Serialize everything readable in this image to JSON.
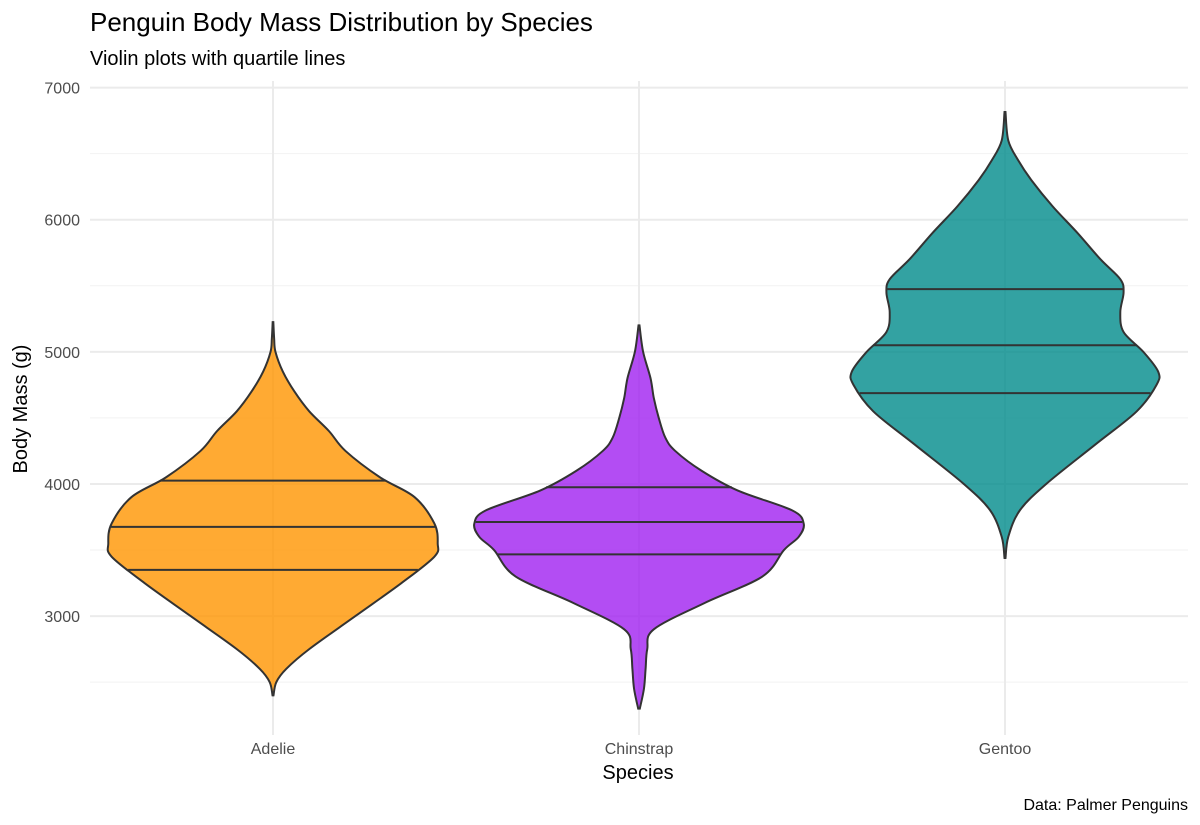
{
  "chart_data": {
    "type": "violin",
    "title": "Penguin Body Mass Distribution by Species",
    "subtitle": "Violin plots with quartile lines",
    "xlabel": "Species",
    "ylabel": "Body Mass (g)",
    "caption": "Data: Palmer Penguins",
    "ylim": [
      2100,
      7050
    ],
    "yticks": [
      3000,
      4000,
      5000,
      6000,
      7000
    ],
    "yticks_minor": [
      2500,
      3500,
      4500,
      5500,
      6500
    ],
    "categories": [
      "Adelie",
      "Chinstrap",
      "Gentoo"
    ],
    "series": [
      {
        "name": "Adelie",
        "color": "#FF9500",
        "quartiles": [
          3350,
          3675,
          4025
        ],
        "density": [
          [
            2400,
            0.003
          ],
          [
            2500,
            0.02
          ],
          [
            2600,
            0.08
          ],
          [
            2750,
            0.22
          ],
          [
            3000,
            0.5
          ],
          [
            3250,
            0.78
          ],
          [
            3450,
            0.98
          ],
          [
            3550,
            1.0
          ],
          [
            3700,
            0.98
          ],
          [
            3900,
            0.86
          ],
          [
            4050,
            0.65
          ],
          [
            4250,
            0.44
          ],
          [
            4400,
            0.34
          ],
          [
            4550,
            0.22
          ],
          [
            4700,
            0.13
          ],
          [
            4850,
            0.06
          ],
          [
            5000,
            0.015
          ],
          [
            5100,
            0.007
          ],
          [
            5225,
            0.002
          ]
        ]
      },
      {
        "name": "Chinstrap",
        "color": "#A020F0",
        "quartiles": [
          3467,
          3712,
          3975
        ],
        "density": [
          [
            2300,
            0.005
          ],
          [
            2450,
            0.03
          ],
          [
            2600,
            0.04
          ],
          [
            2750,
            0.05
          ],
          [
            2900,
            0.09
          ],
          [
            3100,
            0.4
          ],
          [
            3300,
            0.75
          ],
          [
            3500,
            0.88
          ],
          [
            3600,
            0.97
          ],
          [
            3700,
            1.0
          ],
          [
            3800,
            0.93
          ],
          [
            3950,
            0.6
          ],
          [
            4100,
            0.38
          ],
          [
            4250,
            0.22
          ],
          [
            4350,
            0.16
          ],
          [
            4500,
            0.12
          ],
          [
            4650,
            0.09
          ],
          [
            4800,
            0.07
          ],
          [
            5000,
            0.025
          ],
          [
            5200,
            0.003
          ]
        ]
      },
      {
        "name": "Gentoo",
        "color": "#008B8B",
        "quartiles": [
          4688,
          5050,
          5475
        ],
        "density": [
          [
            3440,
            0.003
          ],
          [
            3600,
            0.02
          ],
          [
            3800,
            0.09
          ],
          [
            4000,
            0.25
          ],
          [
            4300,
            0.55
          ],
          [
            4550,
            0.8
          ],
          [
            4750,
            0.92
          ],
          [
            4850,
            0.93
          ],
          [
            5000,
            0.84
          ],
          [
            5150,
            0.72
          ],
          [
            5300,
            0.7
          ],
          [
            5450,
            0.72
          ],
          [
            5550,
            0.7
          ],
          [
            5700,
            0.58
          ],
          [
            5900,
            0.44
          ],
          [
            6100,
            0.29
          ],
          [
            6300,
            0.16
          ],
          [
            6450,
            0.08
          ],
          [
            6600,
            0.02
          ],
          [
            6815,
            0.003
          ]
        ]
      }
    ]
  }
}
